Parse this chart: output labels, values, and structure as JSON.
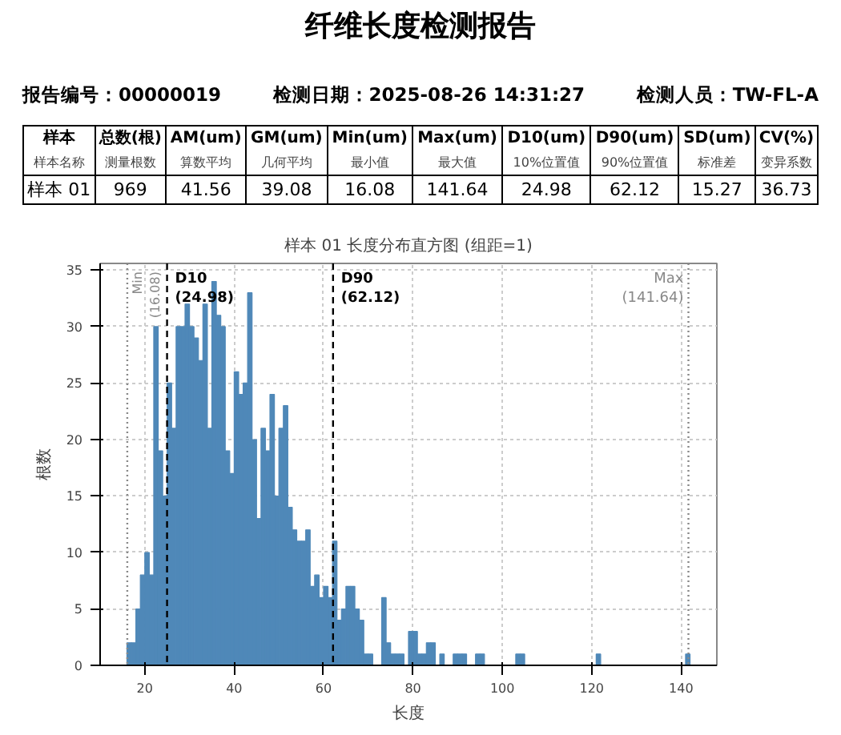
{
  "chart_data": {
    "type": "histogram",
    "title": "样本 01 长度分布直方图 (组距=1)",
    "xlabel": "长度",
    "ylabel": "根数",
    "bins": [
      16,
      17,
      18,
      19,
      20,
      21,
      22,
      23,
      24,
      25,
      26,
      27,
      28,
      29,
      30,
      31,
      32,
      33,
      34,
      35,
      36,
      37,
      38,
      39,
      40,
      41,
      42,
      43,
      44,
      45,
      46,
      47,
      48,
      49,
      50,
      51,
      52,
      53,
      54,
      55,
      56,
      57,
      58,
      59,
      60,
      61,
      62,
      63,
      64,
      65,
      66,
      67,
      68,
      69,
      70,
      71,
      72,
      73,
      74,
      75,
      76,
      77,
      78,
      79,
      80,
      81,
      82,
      83,
      84,
      85,
      86,
      87,
      88,
      89,
      90,
      91,
      92,
      93,
      94,
      95,
      96,
      97,
      98,
      99,
      100,
      101,
      102,
      103,
      104,
      105,
      106,
      107,
      108,
      109,
      110,
      111,
      112,
      113,
      114,
      115,
      116,
      117,
      118,
      119,
      120,
      121,
      122,
      123,
      124,
      125,
      126,
      127,
      128,
      129,
      130,
      131,
      132,
      133,
      134,
      135,
      136,
      137,
      138,
      139,
      140,
      141,
      142
    ],
    "values": [
      2,
      2,
      5,
      8,
      10,
      8,
      30,
      19,
      15,
      25,
      21,
      30,
      30,
      32,
      30,
      29,
      27,
      32,
      21,
      34,
      31,
      30,
      19,
      17,
      26,
      24,
      25,
      33,
      20,
      13,
      21,
      19,
      24,
      15,
      21,
      23,
      14,
      12,
      11,
      11,
      12,
      7,
      8,
      6,
      7,
      6,
      11,
      4,
      5,
      7,
      7,
      5,
      4,
      1,
      1,
      0,
      0,
      6,
      2,
      1,
      1,
      1,
      0,
      3,
      3,
      1,
      1,
      2,
      2,
      0,
      1,
      0,
      0,
      1,
      1,
      1,
      0,
      0,
      1,
      1,
      0,
      0,
      0,
      0,
      0,
      0,
      0,
      1,
      1,
      0,
      0,
      0,
      0,
      0,
      0,
      0,
      0,
      0,
      0,
      0,
      0,
      0,
      0,
      0,
      0,
      1,
      0,
      0,
      0,
      0,
      0,
      0,
      0,
      0,
      0,
      0,
      0,
      0,
      0,
      0,
      0,
      0,
      0,
      0,
      0,
      1
    ],
    "color": "#4f88b8",
    "xlim": [
      10,
      148
    ],
    "ylim": [
      0,
      35.6
    ],
    "xticks": [
      20,
      40,
      60,
      80,
      100,
      120,
      140
    ],
    "yticks": [
      0,
      5,
      10,
      15,
      20,
      25,
      30,
      35
    ],
    "grid": true,
    "ref_lines": [
      {
        "axis": "x",
        "value": 16.08,
        "label": "Min\n(16.08)",
        "color": "#888888",
        "line_style": "dotted"
      },
      {
        "axis": "x",
        "value": 24.98,
        "label": "D10\n(24.98)",
        "color": "#000000",
        "line_style": "dashed"
      },
      {
        "axis": "x",
        "value": 62.12,
        "label": "D90\n(62.12)",
        "color": "#000000",
        "line_style": "dashed"
      },
      {
        "axis": "x",
        "value": 141.64,
        "label": "Max\n(141.64)",
        "color": "#888888",
        "line_style": "dotted"
      }
    ],
    "annotations": [
      "纤维长度检测报告",
      "报告编号：00000019",
      "检测日期：2025-08-26 14:31:27",
      "检测人员：TW-FL-A",
      "样本",
      "总数(根)",
      "AM(um)",
      "GM(um)",
      "Min(um)",
      "Max(um)",
      "D10(um)",
      "D90(um)",
      "SD(um)",
      "CV(%)",
      "样本名称",
      "测量根数",
      "算数平均",
      "几何平均",
      "最小值",
      "最大值",
      "10%位置值",
      "90%位置值",
      "标准差",
      "变异系数",
      "样本 01",
      "969",
      "41.56",
      "39.08",
      "16.08",
      "141.64",
      "24.98",
      "62.12",
      "15.27",
      "36.73"
    ]
  }
}
